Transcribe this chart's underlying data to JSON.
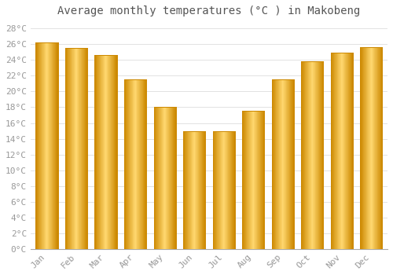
{
  "title": "Average monthly temperatures (°C ) in Makobeng",
  "months": [
    "Jan",
    "Feb",
    "Mar",
    "Apr",
    "May",
    "Jun",
    "Jul",
    "Aug",
    "Sep",
    "Oct",
    "Nov",
    "Dec"
  ],
  "values": [
    26.2,
    25.5,
    24.6,
    21.5,
    18.0,
    15.0,
    15.0,
    17.5,
    21.5,
    23.8,
    24.9,
    25.6
  ],
  "bar_color_main": "#FFC020",
  "bar_color_light": "#FFD870",
  "bar_color_edge": "#CC8800",
  "ylim": [
    0,
    29
  ],
  "yticks": [
    0,
    2,
    4,
    6,
    8,
    10,
    12,
    14,
    16,
    18,
    20,
    22,
    24,
    26,
    28
  ],
  "background_color": "#FFFFFF",
  "grid_color": "#DDDDDD",
  "title_fontsize": 10,
  "tick_fontsize": 8,
  "font_family": "monospace",
  "tick_color": "#999999",
  "title_color": "#555555"
}
